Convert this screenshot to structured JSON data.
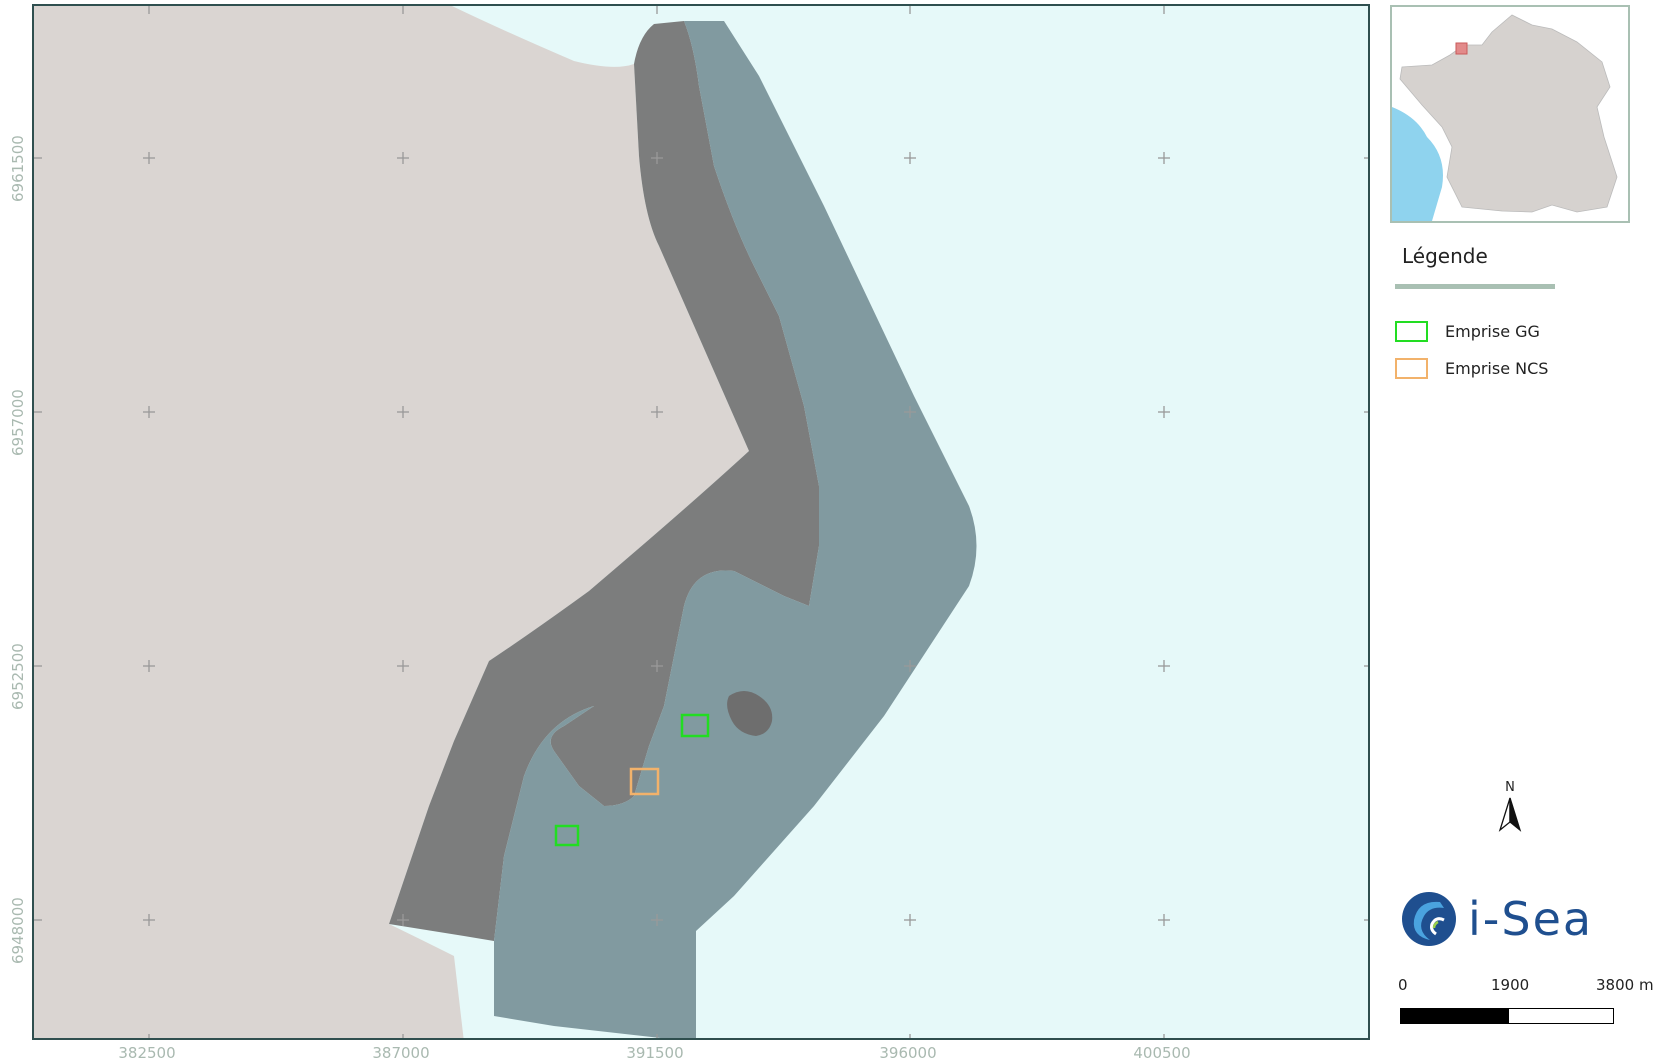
{
  "map": {
    "x_ticks": [
      "382500",
      "387000",
      "391500",
      "396000",
      "400500"
    ],
    "y_ticks": [
      "6961500",
      "6957000",
      "6952500",
      "6948000"
    ],
    "colors": {
      "sea": "#e6f9f9",
      "land": "#dad5d2",
      "coverage_land": "#7a7a7a",
      "coverage_sea": "#7e969c",
      "gg_outline": "#22dd22",
      "ncs_outline": "#f2b26b",
      "grid_cross": "#999999"
    }
  },
  "inset": {
    "name": "france-overview",
    "colors": {
      "land": "#d6d2cf",
      "sea": "#7fcbe8",
      "highlight": "#e28a8a"
    }
  },
  "legend": {
    "title": "Légende",
    "items": [
      {
        "label": "Emprise GG",
        "color": "#22dd22"
      },
      {
        "label": "Emprise NCS",
        "color": "#f2b26b"
      }
    ]
  },
  "north_arrow": {
    "label": "N"
  },
  "logo": {
    "text": "i-Sea"
  },
  "scale_bar": {
    "labels": [
      "0",
      "1900",
      "3800 m"
    ]
  }
}
